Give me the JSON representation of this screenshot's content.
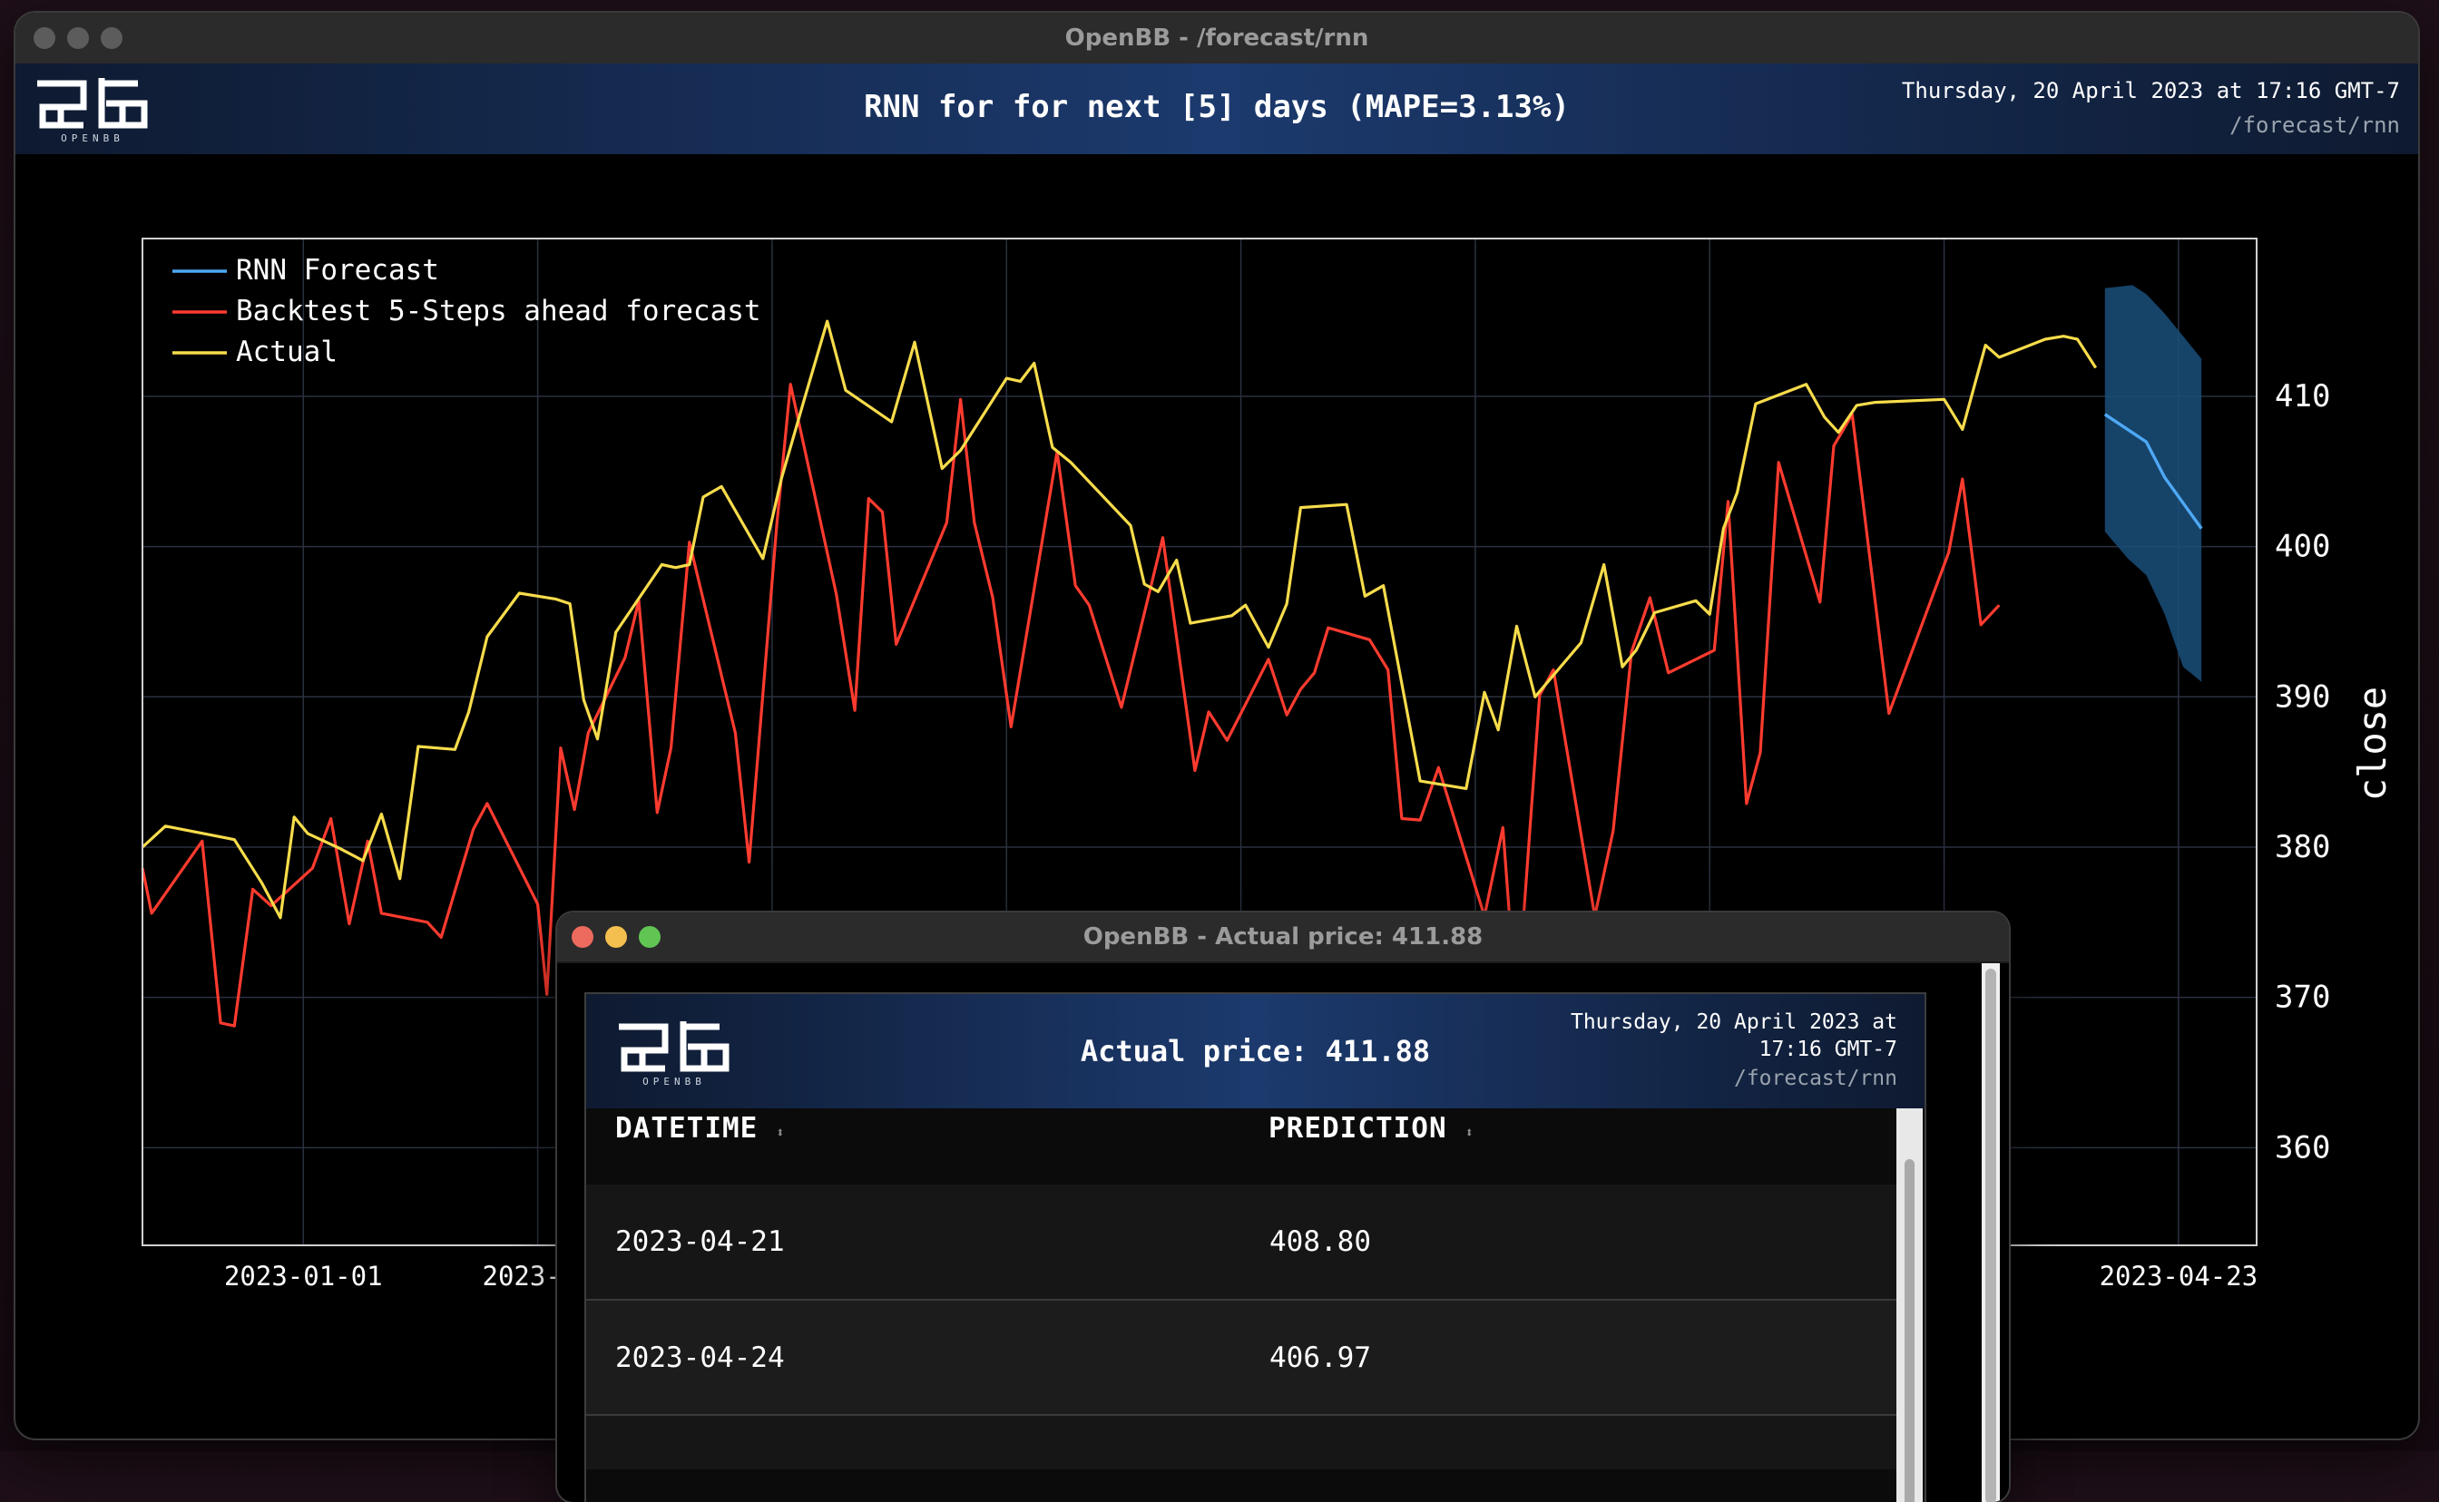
{
  "main_window": {
    "title": "OpenBB - /forecast/rnn",
    "header": {
      "title": "RNN for for next [5] days (MAPE=3.13%)",
      "timestamp": "Thursday, 20 April 2023 at 17:16 GMT-7",
      "path": "/forecast/rnn",
      "logo_text": "OPENBB"
    }
  },
  "chart_data": {
    "type": "line",
    "ylabel": "close",
    "ylim": [
      353.5,
      420.5
    ],
    "y_ticks": [
      "360",
      "370",
      "380",
      "390",
      "400",
      "410"
    ],
    "x_ticks": [
      "2023-01-01",
      "2023-01",
      "2023-04-23"
    ],
    "legend_placement": "top-left",
    "grid": true,
    "colors": {
      "forecast": "#4ea8f5",
      "backtest": "#ff3b2f",
      "actual": "#f7dc4b",
      "band": "#1a4f7a"
    },
    "series": [
      {
        "name": "Actual",
        "points": [
          [
            0,
            380.0
          ],
          [
            5,
            381.4
          ],
          [
            20,
            380.5
          ],
          [
            26,
            377.6
          ],
          [
            30,
            375.3
          ],
          [
            33,
            382.0
          ],
          [
            36,
            380.9
          ],
          [
            43,
            379.9
          ],
          [
            48,
            379.1
          ],
          [
            52,
            382.2
          ],
          [
            56,
            377.9
          ],
          [
            60,
            386.7
          ],
          [
            68,
            386.5
          ],
          [
            71,
            389.0
          ],
          [
            75,
            394.0
          ],
          [
            82,
            396.9
          ],
          [
            90,
            396.5
          ],
          [
            93,
            396.2
          ],
          [
            96,
            389.8
          ],
          [
            99,
            387.2
          ],
          [
            103,
            394.3
          ],
          [
            113,
            398.8
          ],
          [
            116,
            398.6
          ],
          [
            119,
            398.8
          ],
          [
            122,
            403.3
          ],
          [
            126,
            404.0
          ],
          [
            135,
            399.2
          ],
          [
            139,
            404.5
          ],
          [
            144,
            409.8
          ],
          [
            149,
            415.0
          ],
          [
            153,
            410.4
          ],
          [
            163,
            408.3
          ],
          [
            168,
            413.6
          ],
          [
            174,
            405.2
          ],
          [
            178,
            406.4
          ],
          [
            188,
            411.2
          ],
          [
            191,
            411.0
          ],
          [
            194,
            412.2
          ],
          [
            198,
            406.6
          ],
          [
            202,
            405.6
          ],
          [
            215,
            401.4
          ],
          [
            218,
            397.5
          ],
          [
            221,
            397.0
          ],
          [
            225,
            399.1
          ],
          [
            228,
            394.9
          ],
          [
            237,
            395.4
          ],
          [
            240,
            396.1
          ],
          [
            245,
            393.3
          ],
          [
            249,
            396.2
          ],
          [
            252,
            402.6
          ],
          [
            262,
            402.8
          ],
          [
            266,
            396.7
          ],
          [
            270,
            397.4
          ],
          [
            278,
            384.4
          ],
          [
            288,
            383.9
          ],
          [
            292,
            390.3
          ],
          [
            295,
            387.8
          ],
          [
            299,
            394.7
          ],
          [
            303,
            390.0
          ],
          [
            313,
            393.6
          ],
          [
            318,
            398.8
          ],
          [
            322,
            392.0
          ],
          [
            325,
            393.1
          ],
          [
            329,
            395.6
          ],
          [
            338,
            396.4
          ],
          [
            341,
            395.5
          ],
          [
            344,
            401.2
          ],
          [
            347,
            403.6
          ],
          [
            351,
            409.5
          ],
          [
            362,
            410.8
          ],
          [
            366,
            408.6
          ],
          [
            369,
            407.6
          ],
          [
            373,
            409.4
          ],
          [
            377,
            409.6
          ],
          [
            392,
            409.8
          ],
          [
            396,
            407.8
          ],
          [
            401,
            413.4
          ],
          [
            404,
            412.6
          ],
          [
            414,
            413.8
          ],
          [
            418,
            414.0
          ],
          [
            421,
            413.8
          ],
          [
            425,
            411.9
          ]
        ]
      },
      {
        "name": "Backtest 5-Steps ahead forecast",
        "points": [
          [
            0,
            378.6
          ],
          [
            2,
            375.6
          ],
          [
            13,
            380.4
          ],
          [
            17,
            368.3
          ],
          [
            20,
            368.1
          ],
          [
            24,
            377.2
          ],
          [
            28,
            376.1
          ],
          [
            37,
            378.6
          ],
          [
            41,
            381.9
          ],
          [
            45,
            374.9
          ],
          [
            49,
            380.4
          ],
          [
            52,
            375.6
          ],
          [
            62,
            375.0
          ],
          [
            65,
            374.0
          ],
          [
            72,
            381.2
          ],
          [
            75,
            382.9
          ],
          [
            86,
            376.2
          ],
          [
            88,
            370.2
          ],
          [
            91,
            386.6
          ],
          [
            94,
            382.5
          ],
          [
            97,
            387.6
          ],
          [
            105,
            392.6
          ],
          [
            108,
            396.4
          ],
          [
            112,
            382.3
          ],
          [
            115,
            386.6
          ],
          [
            119,
            400.3
          ],
          [
            129,
            387.6
          ],
          [
            132,
            379.0
          ],
          [
            138,
            401.4
          ],
          [
            141,
            410.8
          ],
          [
            151,
            396.8
          ],
          [
            155,
            389.1
          ],
          [
            158,
            403.2
          ],
          [
            161,
            402.3
          ],
          [
            164,
            393.5
          ],
          [
            175,
            401.6
          ],
          [
            178,
            409.8
          ],
          [
            181,
            401.6
          ],
          [
            185,
            396.6
          ],
          [
            189,
            388.0
          ],
          [
            199,
            406.3
          ],
          [
            203,
            397.4
          ],
          [
            206,
            396.1
          ],
          [
            213,
            389.3
          ],
          [
            222,
            400.6
          ],
          [
            229,
            385.1
          ],
          [
            232,
            389.0
          ],
          [
            236,
            387.1
          ],
          [
            245,
            392.5
          ],
          [
            249,
            388.8
          ],
          [
            252,
            390.5
          ],
          [
            255,
            391.6
          ],
          [
            258,
            394.6
          ],
          [
            267,
            393.8
          ],
          [
            271,
            391.8
          ],
          [
            274,
            381.9
          ],
          [
            278,
            381.8
          ],
          [
            282,
            385.3
          ],
          [
            292,
            375.4
          ],
          [
            296,
            381.3
          ],
          [
            299,
            369.0
          ],
          [
            304,
            390.1
          ],
          [
            307,
            391.8
          ],
          [
            316,
            375.4
          ],
          [
            320,
            381.1
          ],
          [
            324,
            393.0
          ],
          [
            328,
            396.6
          ],
          [
            332,
            391.6
          ],
          [
            342,
            393.1
          ],
          [
            345,
            403.0
          ],
          [
            349,
            382.9
          ],
          [
            352,
            386.3
          ],
          [
            356,
            405.6
          ],
          [
            365,
            396.3
          ],
          [
            368,
            406.7
          ],
          [
            372,
            408.8
          ],
          [
            380,
            388.9
          ],
          [
            393,
            399.6
          ],
          [
            396,
            404.5
          ],
          [
            400,
            394.8
          ],
          [
            404,
            396.1
          ]
        ]
      },
      {
        "name": "RNN Forecast",
        "points": [
          [
            427,
            408.8
          ],
          [
            436,
            406.97
          ],
          [
            440,
            404.6
          ],
          [
            448,
            401.2
          ]
        ],
        "band_upper": [
          [
            427,
            417.2
          ],
          [
            433,
            417.4
          ],
          [
            436,
            416.8
          ],
          [
            440,
            415.5
          ],
          [
            448,
            412.5
          ]
        ],
        "band_lower": [
          [
            427,
            401.0
          ],
          [
            432,
            399.2
          ],
          [
            436,
            398.1
          ],
          [
            440,
            395.5
          ],
          [
            444,
            392.0
          ],
          [
            448,
            391.0
          ]
        ]
      }
    ]
  },
  "popup_window": {
    "title": "OpenBB - Actual price: 411.88",
    "header": {
      "title": "Actual price: 411.88",
      "timestamp_line1": "Thursday, 20 April 2023 at",
      "timestamp_line2": "17:16 GMT-7",
      "path": "/forecast/rnn"
    },
    "table": {
      "columns": [
        "DATETIME",
        "PREDICTION"
      ],
      "rows": [
        {
          "datetime": "2023-04-21",
          "prediction": "408.80"
        },
        {
          "datetime": "2023-04-24",
          "prediction": "406.97"
        }
      ]
    }
  }
}
